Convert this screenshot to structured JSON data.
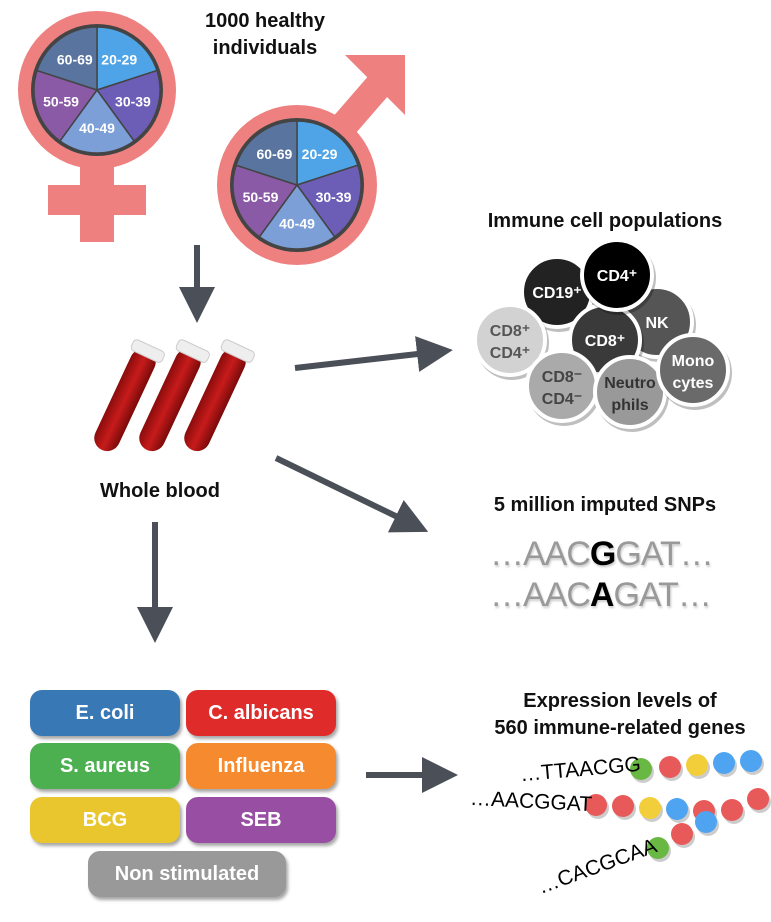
{
  "cohort": {
    "title_line1": "1000 healthy individuals",
    "age_groups": [
      "20-29",
      "30-39",
      "40-49",
      "50-59",
      "60-69"
    ],
    "age_colors": [
      "#4ea4e6",
      "#6c5db6",
      "#7b9fd6",
      "#8a5aa6",
      "#58749f"
    ],
    "symbol_color": "#ee8080"
  },
  "blood": {
    "label": "Whole blood"
  },
  "cells": {
    "title": "Immune cell populations",
    "items": [
      {
        "label1": "CD8⁺",
        "label2": "CD4⁺",
        "color": "#d2d2d2",
        "text": "#555"
      },
      {
        "label1": "CD19⁺",
        "label2": "",
        "color": "#222",
        "text": "#fff"
      },
      {
        "label1": "CD4⁺",
        "label2": "",
        "color": "#000",
        "text": "#fff"
      },
      {
        "label1": "NK",
        "label2": "",
        "color": "#555",
        "text": "#fff"
      },
      {
        "label1": "CD8⁺",
        "label2": "",
        "color": "#3a3a3a",
        "text": "#fff"
      },
      {
        "label1": "CD8⁻",
        "label2": "CD4⁻",
        "color": "#aaa",
        "text": "#444"
      },
      {
        "label1": "Neutro",
        "label2": "phils",
        "color": "#999",
        "text": "#333"
      },
      {
        "label1": "Mono",
        "label2": "cytes",
        "color": "#6a6a6a",
        "text": "#fff"
      }
    ]
  },
  "snps": {
    "title": "5 million imputed SNPs",
    "seq1_prefix": "…AAC",
    "seq1_allele": "G",
    "seq1_suffix": "GAT…",
    "seq2_prefix": "…AAC",
    "seq2_allele": "A",
    "seq2_suffix": "GAT…"
  },
  "stimuli": [
    {
      "label": "E. coli",
      "color": "#3878b4"
    },
    {
      "label": "C. albicans",
      "color": "#e02b2b"
    },
    {
      "label": "S. aureus",
      "color": "#4caf50"
    },
    {
      "label": "Influenza",
      "color": "#f58a2e"
    },
    {
      "label": "BCG",
      "color": "#e9c62e"
    },
    {
      "label": "SEB",
      "color": "#984ea3"
    },
    {
      "label": "Non stimulated",
      "color": "#999999"
    }
  ],
  "expression": {
    "title_line1": "Expression levels of",
    "title_line2": "560 immune-related genes",
    "seqs": [
      "…TTAACGG",
      "…AACGGAT",
      "…CACGCAA"
    ],
    "bead_colors": {
      "green": "#6ab844",
      "red": "#e85a5a",
      "yellow": "#f2cf3a",
      "blue": "#4ea4f0"
    }
  }
}
